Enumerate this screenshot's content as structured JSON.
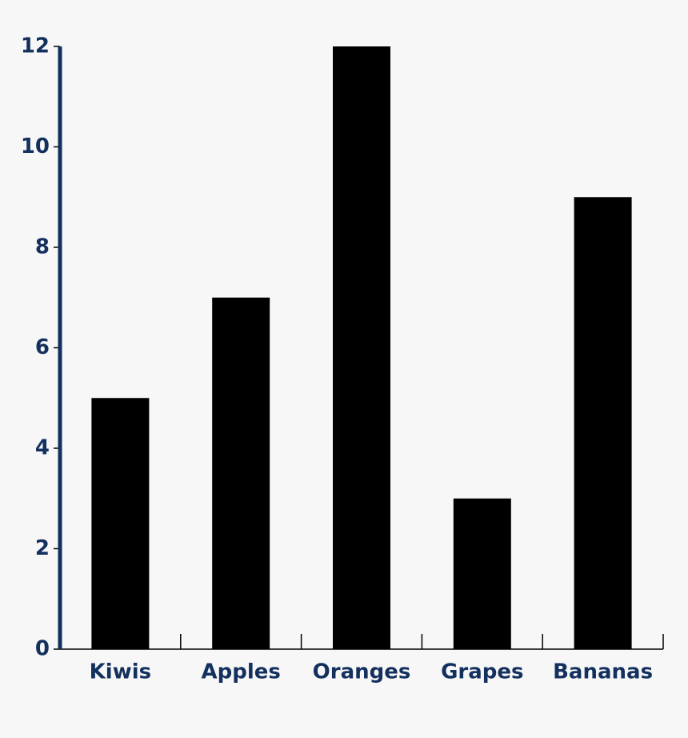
{
  "chart_data": {
    "type": "bar",
    "categories": [
      "Kiwis",
      "Apples",
      "Oranges",
      "Grapes",
      "Bananas"
    ],
    "values": [
      5,
      7,
      12,
      3,
      9
    ],
    "color": "#000000",
    "ylim": [
      0,
      12
    ],
    "yticks": [
      0,
      2,
      4,
      6,
      8,
      10,
      12
    ],
    "grid": false
  }
}
